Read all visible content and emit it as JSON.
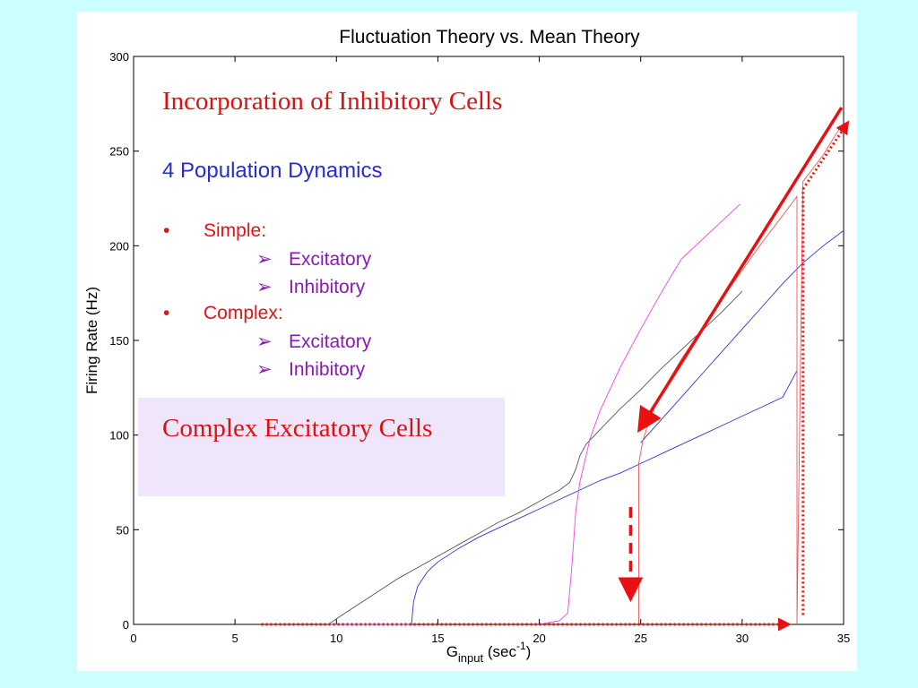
{
  "slide": {
    "heading": "Incorporation of Inhibitory Cells",
    "subheading": "4 Population Dynamics",
    "bullets": [
      {
        "text": "Simple:",
        "children": [
          "Excitatory",
          "Inhibitory"
        ]
      },
      {
        "text": "Complex:",
        "children": [
          "Excitatory",
          "Inhibitory"
        ]
      }
    ],
    "callout": "Complex Excitatory Cells",
    "bullet_marker": "•",
    "sub_marker": "➢"
  },
  "colors": {
    "background": "#ccffff",
    "heading": "#e01010",
    "subheading": "#2a2ad8",
    "bullet_level1": "#e81010",
    "bullet_level2": "#8a1ab8",
    "callout_bg": "#efe6fb",
    "arrow": "#e81010"
  },
  "chart_data": {
    "type": "line",
    "title": "Fluctuation Theory vs. Mean Theory",
    "xlabel_main": "G",
    "xlabel_sub": "input",
    "xlabel_unit_open": " (sec",
    "xlabel_unit_sup": "-1",
    "xlabel_unit_close": ")",
    "ylabel": "Firing Rate (Hz)",
    "xlim": [
      0,
      35
    ],
    "ylim": [
      0,
      300
    ],
    "xticks": [
      0,
      5,
      10,
      15,
      20,
      25,
      30,
      35
    ],
    "yticks": [
      0,
      50,
      100,
      150,
      200,
      250,
      300
    ],
    "grid": false,
    "series": [
      {
        "color": "#555555",
        "x": [
          9.6,
          10,
          11,
          12,
          13,
          14,
          15,
          16,
          17,
          18,
          19,
          20,
          21,
          21.5,
          21.8,
          22,
          22.3,
          23,
          24,
          25,
          26,
          27,
          28,
          29,
          30
        ],
        "y": [
          0,
          3,
          10,
          17,
          24,
          30,
          36,
          42,
          48,
          54,
          59,
          65,
          71,
          75,
          82,
          89,
          95,
          103,
          114,
          124,
          135,
          145,
          155,
          165,
          176
        ]
      },
      {
        "color": "#3333dd",
        "x": [
          9.6,
          13.7,
          13.8,
          14,
          14.5,
          15,
          16,
          17,
          18,
          19,
          20,
          21,
          22,
          23,
          24,
          25,
          26,
          27,
          28,
          29,
          30,
          31,
          32,
          32.7
        ],
        "y": [
          0,
          0,
          12,
          20,
          28,
          33,
          40,
          46,
          51,
          56,
          61,
          66,
          71,
          76,
          80,
          85,
          90,
          95,
          100,
          105,
          110,
          115,
          120,
          134
        ]
      },
      {
        "color": "#3333dd",
        "x": [
          25,
          26,
          27,
          28,
          29,
          30,
          31,
          32,
          33,
          34,
          35
        ],
        "y": [
          96,
          108,
          120,
          132,
          144,
          156,
          168,
          180,
          191,
          200,
          208
        ]
      },
      {
        "color": "#ee44ee",
        "x": [
          20,
          21,
          21.4,
          21.6,
          21.8,
          22,
          22.5,
          23,
          24,
          25,
          26,
          27,
          29.9
        ],
        "y": [
          0,
          2,
          6,
          30,
          60,
          75,
          98,
          113,
          136,
          156,
          175,
          193,
          222
        ]
      },
      {
        "color": "#ee5555",
        "x": [
          24.9,
          24.9,
          25.1,
          25.5,
          26,
          27,
          28,
          29,
          30,
          31,
          32,
          32.7,
          32.7,
          33,
          34,
          34.8
        ],
        "y": [
          0,
          85,
          97,
          110,
          122,
          140,
          156,
          172,
          187,
          202,
          216,
          226,
          0,
          234,
          248,
          262
        ]
      }
    ],
    "arrows": [
      {
        "style": "solid",
        "from": [
          34.9,
          273
        ],
        "to": [
          25.0,
          104
        ]
      },
      {
        "style": "dotted",
        "from": [
          6.3,
          0
        ],
        "to": [
          32.3,
          0
        ]
      },
      {
        "style": "dotted",
        "from": [
          33.0,
          5
        ],
        "to": [
          33.0,
          230
        ]
      },
      {
        "style": "dotted",
        "from": [
          33.0,
          230
        ],
        "to": [
          35.2,
          265
        ]
      },
      {
        "style": "dashed",
        "from": [
          24.5,
          62
        ],
        "to": [
          24.5,
          15
        ]
      }
    ]
  }
}
